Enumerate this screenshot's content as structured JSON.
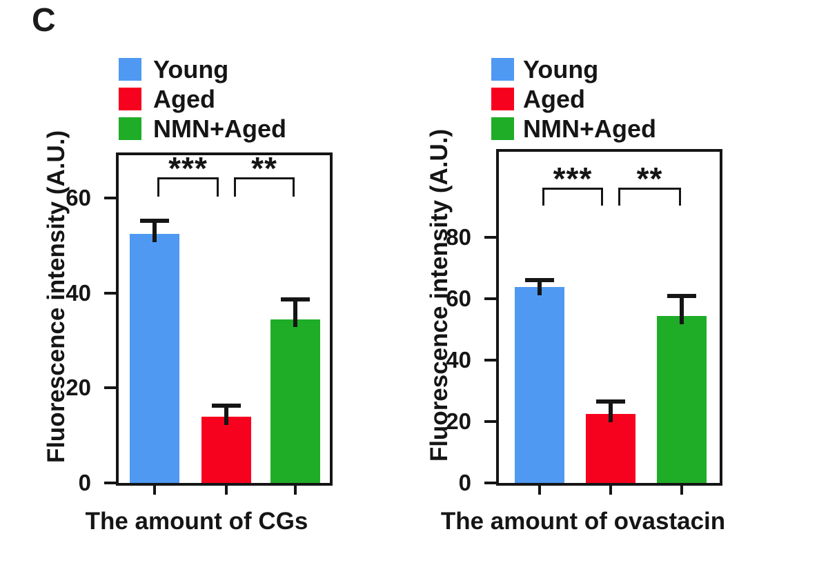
{
  "panel_label": "C",
  "figure": {
    "background": "#ffffff",
    "axis_color": "#151515"
  },
  "chart_data": [
    {
      "type": "bar",
      "title": "The amount of CGs",
      "ylabel": "Fluorescence intensity (A.U.)",
      "categories": [
        "Young",
        "Aged",
        "NMN+Aged"
      ],
      "values": [
        52.5,
        14,
        34.5
      ],
      "errors_plus": [
        3,
        2.5,
        4.5
      ],
      "bar_colors": [
        "#4f99f3",
        "#f7021e",
        "#1fad27"
      ],
      "legend": [
        "Young",
        "Aged",
        "NMN+Aged"
      ],
      "yticks": [
        0,
        20,
        40,
        60
      ],
      "ylim": [
        0,
        69
      ],
      "grid": false,
      "legend_position": "above-plot-left",
      "significance": [
        {
          "between": [
            "Young",
            "Aged"
          ],
          "label": "***"
        },
        {
          "between": [
            "Aged",
            "NMN+Aged"
          ],
          "label": "**"
        }
      ]
    },
    {
      "type": "bar",
      "title": "The amount of ovastacin",
      "ylabel": "Fluorescence intensity (A.U.)",
      "categories": [
        "Young",
        "Aged",
        "NMN+Aged"
      ],
      "values": [
        64,
        22.5,
        54.5
      ],
      "errors_plus": [
        2.5,
        4.5,
        7
      ],
      "bar_colors": [
        "#4f99f3",
        "#f7021e",
        "#1fad27"
      ],
      "legend": [
        "Young",
        "Aged",
        "NMN+Aged"
      ],
      "yticks": [
        0,
        20,
        40,
        60,
        80
      ],
      "ylim": [
        0,
        108
      ],
      "grid": false,
      "legend_position": "above-plot-left",
      "significance": [
        {
          "between": [
            "Young",
            "Aged"
          ],
          "label": "***"
        },
        {
          "between": [
            "Aged",
            "NMN+Aged"
          ],
          "label": "**"
        }
      ]
    }
  ]
}
